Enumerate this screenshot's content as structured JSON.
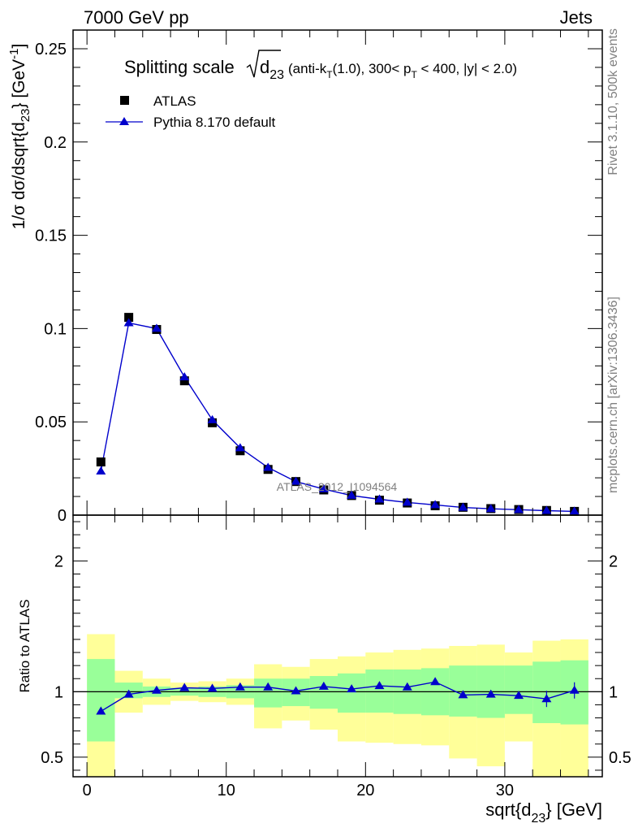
{
  "header": {
    "left": "7000 GeV pp",
    "right": "Jets"
  },
  "side_text": {
    "rivet": "Rivet 3.1.10,  500k events",
    "source": "mcplots.cern.ch [arXiv:1306.3436]"
  },
  "watermark": "ATLAS_2012_I1094564",
  "colors": {
    "mc": "#0000cc",
    "data": "#000000",
    "band_inner": "#99ff99",
    "band_outer": "#ffff99"
  },
  "chart_data": [
    {
      "type": "scatter",
      "title": "Splitting scale √d23 (anti-kT(1.0), 300< pT < 400, |y| < 2.0)",
      "ylabel": "1/σ dσ/dsqrt{d23} [GeV-1]",
      "xlabel": "sqrt{d23} [GeV]",
      "xlim": [
        -1,
        37
      ],
      "ylim": [
        0,
        0.26
      ],
      "yticks": [
        "0",
        "0.05",
        "0.1",
        "0.15",
        "0.2",
        "0.25"
      ],
      "legend": {
        "placement": "top-left",
        "entries": [
          "ATLAS",
          "Pythia 8.170 default"
        ]
      },
      "x": [
        1,
        3,
        5,
        7,
        9,
        11,
        13,
        15,
        17,
        19,
        21,
        23,
        25,
        27,
        29,
        31,
        33,
        35
      ],
      "series": [
        {
          "name": "ATLAS",
          "marker": "square",
          "values": [
            0.0285,
            0.106,
            0.0995,
            0.072,
            0.0495,
            0.0345,
            0.0245,
            0.018,
            0.0135,
            0.0105,
            0.008,
            0.0065,
            0.005,
            0.0042,
            0.0035,
            0.003,
            0.0025,
            0.002
          ]
        },
        {
          "name": "Pythia 8.170 default",
          "marker": "triangle",
          "values": [
            0.0235,
            0.103,
            0.1,
            0.074,
            0.051,
            0.036,
            0.0255,
            0.018,
            0.014,
            0.0105,
            0.0085,
            0.0068,
            0.0055,
            0.0041,
            0.0034,
            0.0029,
            0.0024,
            0.002
          ]
        }
      ]
    },
    {
      "type": "line",
      "ylabel": "Ratio to ATLAS",
      "xlabel": "sqrt{d23} [GeV]",
      "xlim": [
        -1,
        37
      ],
      "ylim": [
        0.35,
        2.35
      ],
      "xticks": [
        "0",
        "10",
        "20",
        "30"
      ],
      "yticks_labels": [
        "0.5",
        "1",
        "2"
      ],
      "bins": [
        [
          0,
          2
        ],
        [
          2,
          4
        ],
        [
          4,
          6
        ],
        [
          6,
          8
        ],
        [
          8,
          10
        ],
        [
          10,
          12
        ],
        [
          12,
          14
        ],
        [
          14,
          16
        ],
        [
          16,
          18
        ],
        [
          18,
          20
        ],
        [
          20,
          22
        ],
        [
          22,
          24
        ],
        [
          24,
          26
        ],
        [
          26,
          28
        ],
        [
          28,
          30
        ],
        [
          30,
          32
        ],
        [
          32,
          34
        ],
        [
          34,
          36
        ]
      ],
      "x": [
        1,
        3,
        5,
        7,
        9,
        11,
        13,
        15,
        17,
        19,
        21,
        23,
        25,
        27,
        29,
        31,
        33,
        35
      ],
      "ratio": [
        0.85,
        0.98,
        1.01,
        1.03,
        1.025,
        1.035,
        1.035,
        1.005,
        1.04,
        1.02,
        1.045,
        1.035,
        1.075,
        0.975,
        0.98,
        0.97,
        0.945,
        1.01
      ],
      "band_inner": [
        [
          0.62,
          1.25
        ],
        [
          0.95,
          1.07
        ],
        [
          0.96,
          1.04
        ],
        [
          0.97,
          1.03
        ],
        [
          0.96,
          1.04
        ],
        [
          0.95,
          1.05
        ],
        [
          0.88,
          1.1
        ],
        [
          0.89,
          1.1
        ],
        [
          0.87,
          1.12
        ],
        [
          0.84,
          1.14
        ],
        [
          0.84,
          1.17
        ],
        [
          0.83,
          1.17
        ],
        [
          0.82,
          1.18
        ],
        [
          0.81,
          1.2
        ],
        [
          0.8,
          1.2
        ],
        [
          0.83,
          1.2
        ],
        [
          0.76,
          1.23
        ],
        [
          0.75,
          1.24
        ]
      ],
      "band_outer": [
        [
          0.35,
          1.44
        ],
        [
          0.84,
          1.16
        ],
        [
          0.9,
          1.1
        ],
        [
          0.93,
          1.07
        ],
        [
          0.92,
          1.08
        ],
        [
          0.9,
          1.1
        ],
        [
          0.72,
          1.21
        ],
        [
          0.78,
          1.19
        ],
        [
          0.71,
          1.25
        ],
        [
          0.62,
          1.27
        ],
        [
          0.61,
          1.3
        ],
        [
          0.6,
          1.32
        ],
        [
          0.59,
          1.33
        ],
        [
          0.49,
          1.35
        ],
        [
          0.43,
          1.36
        ],
        [
          0.62,
          1.3
        ],
        [
          0.35,
          1.39
        ],
        [
          0.35,
          1.4
        ]
      ]
    }
  ]
}
